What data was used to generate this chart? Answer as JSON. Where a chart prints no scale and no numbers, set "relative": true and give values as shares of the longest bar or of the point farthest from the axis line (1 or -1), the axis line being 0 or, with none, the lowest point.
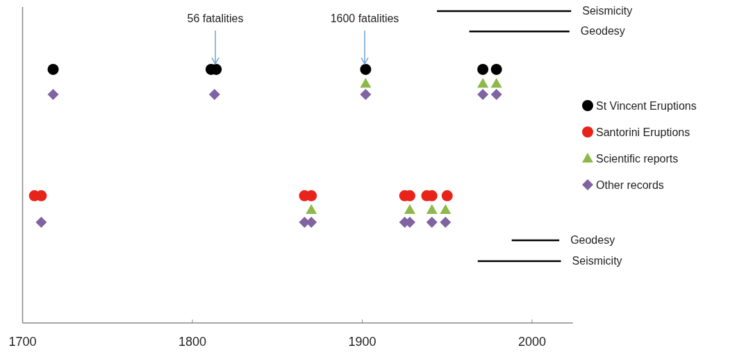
{
  "chart_data": {
    "type": "scatter",
    "relative": true,
    "legend": "right",
    "xlim": [
      1700,
      2024
    ],
    "xticks": [
      1700,
      1800,
      1900,
      2000
    ],
    "annotations": [
      "56 fatalities",
      "1600 fatalities"
    ],
    "series": [
      {
        "name": "St Vincent Eruptions",
        "marker": "circle",
        "color": "#000000",
        "x": [
          1718,
          1811,
          1814,
          1902,
          1971,
          1979
        ],
        "values": [
          0.813,
          0.813,
          0.813,
          0.813,
          0.813,
          0.813
        ]
      },
      {
        "name": "Santorini Eruptions",
        "marker": "circle",
        "color": "#e8231a",
        "x": [
          1707,
          1711,
          1866,
          1870,
          1925,
          1928,
          1938,
          1941,
          1950
        ],
        "values": [
          0.408,
          0.408,
          0.408,
          0.408,
          0.408,
          0.408,
          0.408,
          0.408,
          0.408
        ]
      },
      {
        "name": "Scientific reports",
        "marker": "triangle",
        "color": "#8db84a",
        "x": [
          1902,
          1971,
          1979,
          1870,
          1928,
          1941,
          1949
        ],
        "values": [
          0.768,
          0.768,
          0.768,
          0.363,
          0.363,
          0.363,
          0.363
        ]
      },
      {
        "name": "Other records",
        "marker": "diamond",
        "color": "#8064a2",
        "x": [
          1718,
          1813,
          1902,
          1971,
          1979,
          1711,
          1866,
          1870,
          1925,
          1928,
          1941,
          1949
        ],
        "values": [
          0.733,
          0.733,
          0.733,
          0.733,
          0.733,
          0.323,
          0.323,
          0.323,
          0.323,
          0.323,
          0.323,
          0.323
        ]
      },
      {
        "name": "Seismicity",
        "type": "line",
        "marker": "none",
        "color": "#000000",
        "x": [
          1944,
          2023
        ],
        "values": [
          1,
          1
        ]
      },
      {
        "name": "Geodesy",
        "type": "line",
        "marker": "none",
        "color": "#000000",
        "x": [
          1963,
          2022
        ],
        "values": [
          0.935,
          0.935
        ]
      },
      {
        "name": "Geodesy",
        "type": "line",
        "marker": "none",
        "color": "#000000",
        "x": [
          1988,
          2016
        ],
        "values": [
          0.265,
          0.265
        ]
      },
      {
        "name": "Seismicity",
        "type": "line",
        "marker": "none",
        "color": "#000000",
        "x": [
          1968,
          2017
        ],
        "values": [
          0.198,
          0.198
        ]
      }
    ]
  }
}
